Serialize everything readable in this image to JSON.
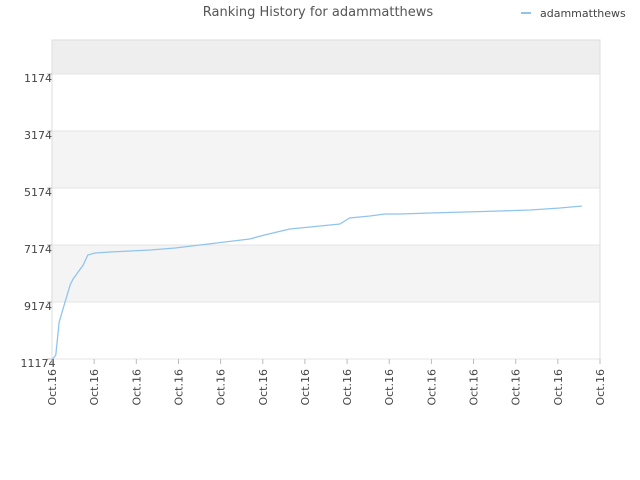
{
  "chart_data": {
    "type": "line",
    "title": "Ranking History for adammatthews",
    "legend": "top-right",
    "y_inverted": true,
    "xlim": [
      0,
      13
    ],
    "xticks": [
      {
        "value": 0,
        "label": "Oct.16"
      },
      {
        "value": 1,
        "label": "Oct.16"
      },
      {
        "value": 2,
        "label": "Oct.16"
      },
      {
        "value": 3,
        "label": "Oct.16"
      },
      {
        "value": 4,
        "label": "Oct.16"
      },
      {
        "value": 5,
        "label": "Oct.16"
      },
      {
        "value": 6,
        "label": "Oct.16"
      },
      {
        "value": 7,
        "label": "Oct.16"
      },
      {
        "value": 8,
        "label": "Oct.16"
      },
      {
        "value": 9,
        "label": "Oct.16"
      },
      {
        "value": 10,
        "label": "Oct.16"
      },
      {
        "value": 11,
        "label": "Oct.16"
      },
      {
        "value": 12,
        "label": "Oct.16"
      },
      {
        "value": 13,
        "label": "Oct.16"
      }
    ],
    "ylim": [
      11174,
      -19
    ],
    "yticks": [
      1174,
      3174,
      5174,
      7174,
      9174,
      11174
    ],
    "series": [
      {
        "name": "adammatthews",
        "color": "#90c4ee",
        "x": [
          0.02,
          0.09,
          0.17,
          0.24,
          0.36,
          0.43,
          0.5,
          0.62,
          0.74,
          0.85,
          1.02,
          1.38,
          1.85,
          2.33,
          2.92,
          3.51,
          4.1,
          4.69,
          5.04,
          5.64,
          6.12,
          6.83,
          7.06,
          7.54,
          7.9,
          8.26,
          8.97,
          9.8,
          10.63,
          11.34,
          12.05,
          12.57
        ],
        "values": [
          11174,
          11033,
          9876,
          9525,
          8928,
          8577,
          8367,
          8121,
          7876,
          7525,
          7455,
          7420,
          7385,
          7350,
          7279,
          7174,
          7069,
          6964,
          6823,
          6613,
          6543,
          6437,
          6226,
          6156,
          6086,
          6086,
          6051,
          6016,
          5981,
          5946,
          5876,
          5806
        ]
      }
    ]
  }
}
